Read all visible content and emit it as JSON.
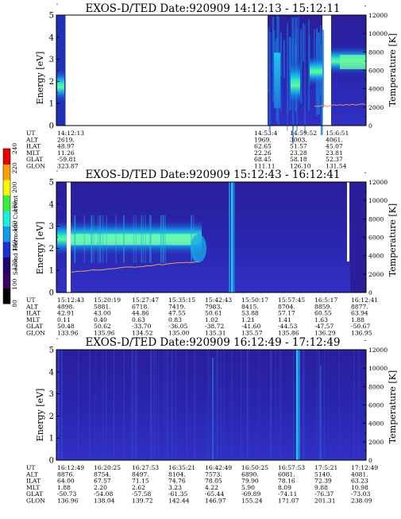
{
  "colorbar": {
    "label": "Second Harmonic Current",
    "ticks": [
      "80",
      "100",
      "120",
      "140",
      "160",
      "180",
      "200",
      "220",
      "240"
    ],
    "colors": [
      "#000000",
      "#3a0068",
      "#24006e",
      "#1c2fd0",
      "#1498e8",
      "#18f0d8",
      "#38f038",
      "#f8f800",
      "#f8a000",
      "#e80000"
    ]
  },
  "panel_labels": {
    "y_left": "Energy [eV]",
    "y_right": "Temperature [K]",
    "y_left_ticks": [
      "0",
      "1",
      "2",
      "3",
      "4",
      "5"
    ],
    "y_right_ticks": [
      "0",
      "2000",
      "4000",
      "6000",
      "8000",
      "10000",
      "12000"
    ]
  },
  "row_labels": [
    "UT",
    "ALT",
    "ILAT",
    "MLT",
    "GLAT",
    "GLON"
  ],
  "chart_data": [
    {
      "type": "heatmap",
      "title": "EXOS-D/TED  Date:920909  14:12:13 - 15:12:11",
      "ylabel": "Energy [eV]",
      "y2label": "Temperature [K]",
      "ylim": [
        0,
        5
      ],
      "y2lim": [
        0,
        12000
      ],
      "ephemeris": [
        {
          "UT": "14:12:13",
          "ALT": "2619.",
          "ILAT": "48.97",
          "MLT": "11.26",
          "GLAT": "-59.81",
          "GLON": "323.87"
        },
        {
          "UT": "14:53:4",
          "ALT": "1969.",
          "ILAT": "62.65",
          "MLT": "22.26",
          "GLAT": "68.45",
          "GLON": "111.11"
        },
        {
          "UT": "14:59:52",
          "ALT": "3003.",
          "ILAT": "51.57",
          "MLT": "23.28",
          "GLAT": "58.18",
          "GLON": "126.10"
        },
        {
          "UT": "15:6:51",
          "ALT": "4061.",
          "ILAT": "45.07",
          "MLT": "23.81",
          "GLAT": "52.37",
          "GLON": "131.54"
        }
      ]
    },
    {
      "type": "heatmap",
      "title": "EXOS-D/TED   Date:920909  15:12:43 - 16:12:41",
      "ylabel": "Energy [eV]",
      "y2label": "Temperature [K]",
      "ylim": [
        0,
        5
      ],
      "y2lim": [
        0,
        12000
      ],
      "ephemeris": [
        {
          "UT": "15:12:43",
          "ALT": "4898.",
          "ILAT": "42.91",
          "MLT": "0.11",
          "GLAT": "50.48",
          "GLON": "133.96"
        },
        {
          "UT": "15:20:19",
          "ALT": "5881.",
          "ILAT": "43.00",
          "MLT": "0.40",
          "GLAT": "50.62",
          "GLON": "135.96"
        },
        {
          "UT": "15:27:47",
          "ALT": "6718.",
          "ILAT": "44.86",
          "MLT": "0.63",
          "GLAT": "-33.70",
          "GLON": "134.52"
        },
        {
          "UT": "15:35:15",
          "ALT": "7419.",
          "ILAT": "47.55",
          "MLT": "0.83",
          "GLAT": "-36.05",
          "GLON": "135.00"
        },
        {
          "UT": "15:42:43",
          "ALT": "7983.",
          "ILAT": "50.61",
          "MLT": "1.02",
          "GLAT": "-38.72",
          "GLON": "135.31"
        },
        {
          "UT": "15:50:17",
          "ALT": "8415.",
          "ILAT": "53.88",
          "MLT": "1.21",
          "GLAT": "-41.60",
          "GLON": "135.57"
        },
        {
          "UT": "15:57:45",
          "ALT": "8704.",
          "ILAT": "57.17",
          "MLT": "1.41",
          "GLAT": "-44.53",
          "GLON": "135.86"
        },
        {
          "UT": "16:5:17",
          "ALT": "8859.",
          "ILAT": "60.55",
          "MLT": "1.63",
          "GLAT": "-47.57",
          "GLON": "136.29"
        },
        {
          "UT": "16:12:41",
          "ALT": "8877.",
          "ILAT": "63.94",
          "MLT": "1.88",
          "GLAT": "-50.67",
          "GLON": "136.95"
        }
      ]
    },
    {
      "type": "heatmap",
      "title": "EXOS-D/TED  Date:920909  16:12:49 - 17:12:49",
      "ylabel": "Energy [eV]",
      "y2label": "Temperature [K]",
      "ylim": [
        0,
        5
      ],
      "y2lim": [
        0,
        12000
      ],
      "ephemeris": [
        {
          "UT": "16:12:49",
          "ALT": "8876.",
          "ILAT": "64.00",
          "MLT": "1.88",
          "GLAT": "-50.73",
          "GLON": "136.96"
        },
        {
          "UT": "16:20:25",
          "ALT": "8754.",
          "ILAT": "67.57",
          "MLT": "2.20",
          "GLAT": "-54.08",
          "GLON": "138.04"
        },
        {
          "UT": "16:27:53",
          "ALT": "8497.",
          "ILAT": "71.15",
          "MLT": "2.62",
          "GLAT": "-57.58",
          "GLON": "139.72"
        },
        {
          "UT": "16:35:21",
          "ALT": "8104.",
          "ILAT": "74.76",
          "MLT": "3.23",
          "GLAT": "-61.35",
          "GLON": "142.44"
        },
        {
          "UT": "16:42:49",
          "ALT": "7573.",
          "ILAT": "78.05",
          "MLT": "4.22",
          "GLAT": "-65.44",
          "GLON": "146.97"
        },
        {
          "UT": "16:50:25",
          "ALT": "6890.",
          "ILAT": "79.90",
          "MLT": "5.90",
          "GLAT": "-69.89",
          "GLON": "155.24"
        },
        {
          "UT": "16:57:53",
          "ALT": "6081.",
          "ILAT": "78.16",
          "MLT": "8.09",
          "GLAT": "-74.11",
          "GLON": "171.07"
        },
        {
          "UT": "17:5:21",
          "ALT": "5140.",
          "ILAT": "72.39",
          "MLT": "9.88",
          "GLAT": "-76.37",
          "GLON": "201.31"
        },
        {
          "UT": "17:12:49",
          "ALT": "4081.",
          "ILAT": "63.23",
          "MLT": "10.98",
          "GLAT": "-73.03",
          "GLON": "238.09"
        }
      ]
    }
  ]
}
